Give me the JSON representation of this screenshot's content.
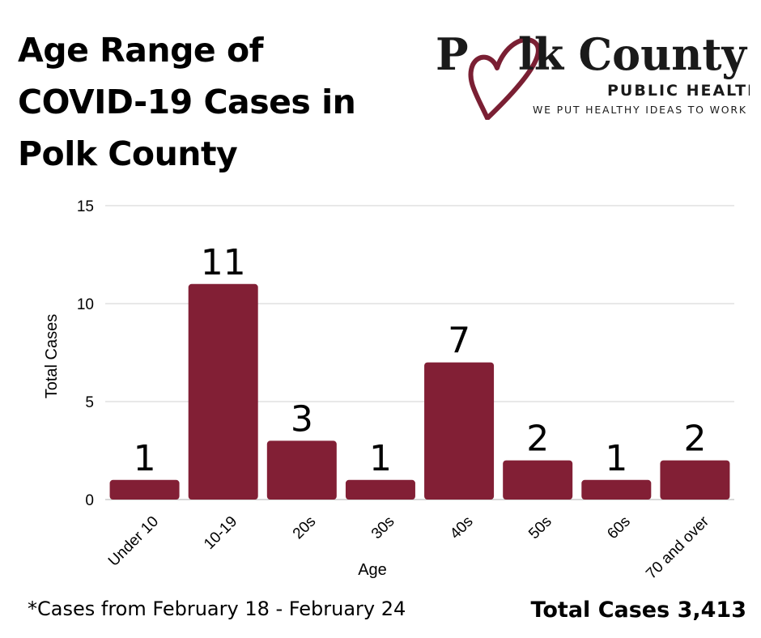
{
  "title": "Age Range of COVID-19 Cases in Polk County",
  "logo": {
    "name_part1": "P",
    "name_part2": "lk County",
    "subtitle": "PUBLIC HEALTH",
    "tagline": "WE PUT HEALTHY IDEAS TO WORK",
    "brand_color": "#7a1f33",
    "icon": "heart-icon"
  },
  "footnote": "*Cases from February 18 - February 24",
  "total_cases": "Total Cases 3,413",
  "colors": {
    "bar": "#821f35",
    "grid": "#d0d0d0",
    "axis": "#b0b0b0"
  },
  "chart_data": {
    "type": "bar",
    "categories": [
      "Under 10",
      "10-19",
      "20s",
      "30s",
      "40s",
      "50s",
      "60s",
      "70 and over"
    ],
    "values": [
      1,
      11,
      3,
      1,
      7,
      2,
      1,
      2
    ],
    "xlabel": "Age",
    "ylabel": "Total Cases",
    "ylim": [
      0,
      15
    ],
    "yticks": [
      0,
      5,
      10,
      15
    ],
    "grid": true,
    "data_labels": true
  }
}
